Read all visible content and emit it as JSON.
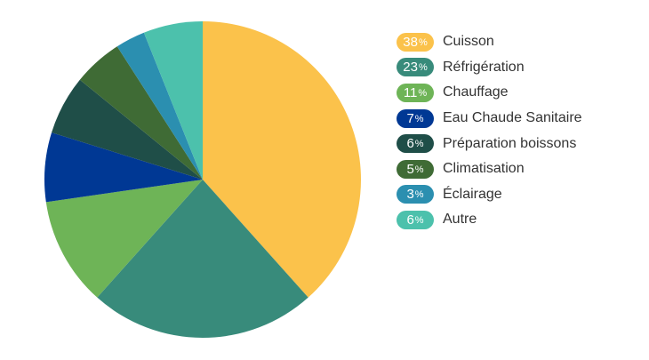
{
  "colors": {
    "Cuisson": "#FBC24B",
    "Réfrigération": "#388B7B",
    "Chauffage": "#6EB457",
    "Eau Chaude Sanitaire": "#003894",
    "Préparation boissons": "#1F4E48",
    "Climatisation": "#3F6B35",
    "Éclairage": "#2B8FB0",
    "Autre": "#4CC1AC"
  },
  "chart_data": {
    "type": "pie",
    "categories": [
      "Cuisson",
      "Réfrigération",
      "Chauffage",
      "Eau Chaude Sanitaire",
      "Préparation boissons",
      "Climatisation",
      "Éclairage",
      "Autre"
    ],
    "values": [
      38,
      23,
      11,
      7,
      6,
      5,
      3,
      6
    ],
    "percent_sign": "%",
    "legend_position": "right",
    "title": ""
  }
}
